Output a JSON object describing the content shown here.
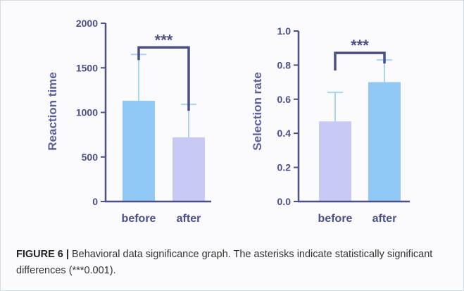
{
  "chart_data": [
    {
      "type": "bar",
      "categories": [
        "before",
        "after"
      ],
      "values": [
        1130,
        720
      ],
      "error": [
        520,
        370
      ],
      "bar_colors": [
        "#91c8f5",
        "#c9c9f5"
      ],
      "ylabel": "Reaction time",
      "ylim": [
        0,
        2000
      ],
      "yticks": [
        "0",
        "500",
        "1000",
        "1500",
        "2000"
      ],
      "significance": "***"
    },
    {
      "type": "bar",
      "categories": [
        "before",
        "after"
      ],
      "values": [
        0.47,
        0.7
      ],
      "error": [
        0.17,
        0.13
      ],
      "bar_colors": [
        "#c9c9f5",
        "#91c8f5"
      ],
      "ylabel": "Selection rate",
      "ylim": [
        0,
        1.0
      ],
      "yticks": [
        "0.0",
        "0.2",
        "0.4",
        "0.6",
        "0.8",
        "1.0"
      ],
      "significance": "***"
    }
  ],
  "caption": {
    "figure_label": "FIGURE 6 |",
    "text": " Behavioral data significance graph. The asterisks indicate statistically significant differences (***0.001)."
  },
  "colors": {
    "axis": "#4a4f8a",
    "bracket": "#4a4f8a",
    "error_bar": "#a8d4f5"
  }
}
